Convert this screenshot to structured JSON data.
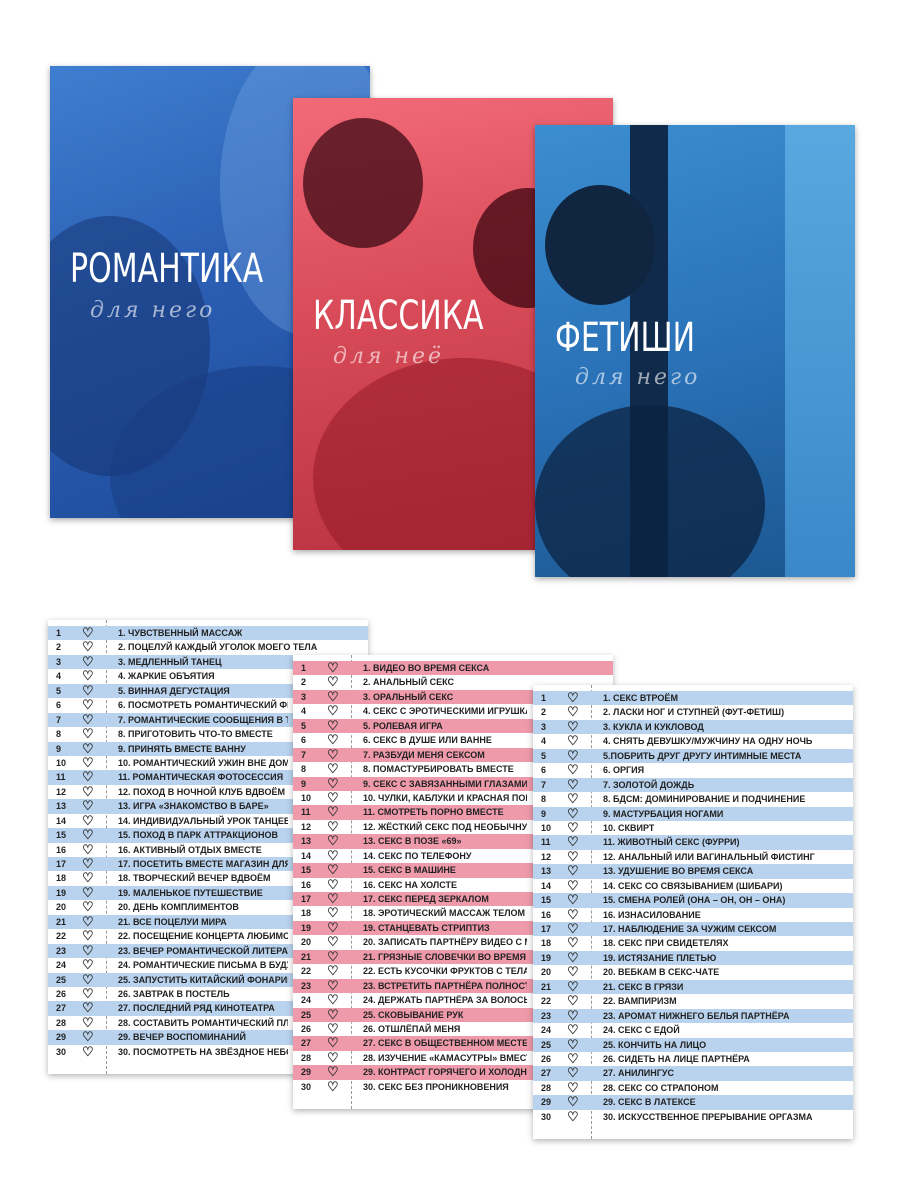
{
  "colors": {
    "romance_card": "#2b5fb4",
    "classic_card": "#d84a58",
    "fetish_card": "#2a72b8",
    "blue_row": "#b9d3ee",
    "pink_row": "#ef9aab"
  },
  "cards": [
    {
      "title": "РОМАНТИКА",
      "subtitle": "для него"
    },
    {
      "title": "КЛАССИКА",
      "subtitle": "для неё"
    },
    {
      "title": "ФЕТИШИ",
      "subtitle": "для него"
    }
  ],
  "row_icon": "heart-outline-icon",
  "lists": {
    "romance": [
      "1. ЧУВСТВЕННЫЙ МАССАЖ",
      "2. ПОЦЕЛУЙ КАЖДЫЙ УГОЛОК МОЕГО ТЕЛА",
      "3. МЕДЛЕННЫЙ ТАНЕЦ",
      "4. ЖАРКИЕ ОБЪЯТИЯ",
      "5. ВИННАЯ ДЕГУСТАЦИЯ",
      "6. ПОСМОТРЕТЬ РОМАНТИЧЕСКИЙ ФИЛЬМ",
      "7. РОМАНТИЧЕСКИЕ СООБЩЕНИЯ В ТЕЧЕНИЕ Д",
      "8. ПРИГОТОВИТЬ ЧТО-ТО ВМЕСТЕ",
      "9. ПРИНЯТЬ ВМЕСТЕ ВАННУ",
      "10. РОМАНТИЧЕСКИЙ УЖИН ВНЕ ДОМА",
      "11. РОМАНТИЧЕСКАЯ ФОТОСЕССИЯ",
      "12. ПОХОД В НОЧНОЙ КЛУБ ВДВОЁМ",
      "13. ИГРА «ЗНАКОМСТВО В БАРЕ»",
      "14. ИНДИВИДУАЛЬНЫЙ УРОК ТАНЦЕВ",
      "15. ПОХОД В ПАРК АТТРАКЦИОНОВ",
      "16. АКТИВНЫЙ ОТДЫХ ВМЕСТЕ",
      "17. ПОСЕТИТЬ ВМЕСТЕ МАГАЗИН ДЛЯ ВЗРОСЛ",
      "18. ТВОРЧЕСКИЙ ВЕЧЕР ВДВОЁМ",
      "19. МАЛЕНЬКОЕ ПУТЕШЕСТВИЕ",
      "20. ДЕНЬ КОМПЛИМЕНТОВ",
      "21. ВСЕ ПОЦЕЛУИ МИРА",
      "22. ПОСЕЩЕНИЕ КОНЦЕРТА ЛЮБИМОГО МУЗЫ",
      "23. ВЕЧЕР РОМАНТИЧЕСКОЙ ЛИТЕРАТУРЫ",
      "24. РОМАНТИЧЕСКИЕ ПИСЬМА В БУДУЩЕЕ",
      "25. ЗАПУСТИТЬ КИТАЙСКИЙ ФОНАРИК",
      "26. ЗАВТРАК В ПОСТЕЛЬ",
      "27. ПОСЛЕДНИЙ РЯД КИНОТЕАТРА",
      "28. СОСТАВИТЬ РОМАНТИЧЕСКИЙ ПЛЕЙЛИСТ",
      "29. ВЕЧЕР ВОСПОМИНАНИЙ",
      "30. ПОСМОТРЕТЬ НА ЗВЁЗДНОЕ НЕБО"
    ],
    "classic": [
      "1. ВИДЕО ВО ВРЕМЯ СЕКСА",
      "2. АНАЛЬНЫЙ СЕКС",
      "3. ОРАЛЬНЫЙ СЕКС",
      "4. СЕКС С ЭРОТИЧЕСКИМИ ИГРУШКАМИ",
      "5. РОЛЕВАЯ ИГРА",
      "6. СЕКС В ДУШЕ ИЛИ ВАННЕ",
      "7. РАЗБУДИ МЕНЯ СЕКСОМ",
      "8. ПОМАСТУРБИРОВАТЬ ВМЕСТЕ",
      "9. СЕКС С ЗАВЯЗАННЫМИ ГЛАЗАМИ",
      "10. ЧУЛКИ, КАБЛУКИ И КРАСНАЯ ПОМАДА",
      "11. СМОТРЕТЬ ПОРНО ВМЕСТЕ",
      "12. ЖЁСТКИЙ СЕКС ПОД НЕОБЫЧНУЮ МУЗЫК",
      "13. СЕКС В ПОЗЕ «69»",
      "14. СЕКС ПО ТЕЛЕФОНУ",
      "15. СЕКС В МАШИНЕ",
      "16. СЕКС НА ХОЛСТЕ",
      "17. СЕКС ПЕРЕД ЗЕРКАЛОМ",
      "18. ЭРОТИЧЕСКИЙ МАССАЖ ТЕЛОМ",
      "19. СТАНЦЕВАТЬ СТРИПТИЗ",
      "20. ЗАПИСАТЬ ПАРТНЁРУ ВИДЕО С МАСТУРБ",
      "21. ГРЯЗНЫЕ СЛОВЕЧКИ ВО ВРЕМЯ СЕКСА",
      "22. ЕСТЬ КУСОЧКИ ФРУКТОВ С ТЕЛА",
      "23. ВСТРЕТИТЬ ПАРТНЁРА ПОЛНОСТЬЮ ГОЛЬ",
      "24. ДЕРЖАТЬ ПАРТНЁРА ЗА ВОЛОСЫ",
      "25. СКОВЫВАНИЕ РУК",
      "26. ОТШЛЁПАЙ МЕНЯ",
      "27. СЕКС В ОБЩЕСТВЕННОМ МЕСТЕ",
      "28. ИЗУЧЕНИЕ «КАМАСУТРЫ» ВМЕСТЕ",
      "29. КОНТРАСТ ГОРЯЧЕГО И ХОЛОДНОГО",
      "30. СЕКС БЕЗ ПРОНИКНОВЕНИЯ"
    ],
    "fetish": [
      "1.  СЕКС ВТРОЁМ",
      "2. ЛАСКИ НОГ И СТУПНЕЙ (ФУТ-ФЕТИШ)",
      "3. КУКЛА И КУКЛОВОД",
      "4. СНЯТЬ ДЕВУШКУ/МУЖЧИНУ НА ОДНУ НОЧЬ",
      "5.ПОБРИТЬ ДРУГ ДРУГУ ИНТИМНЫЕ МЕСТА",
      "6. ОРГИЯ",
      "7. ЗОЛОТОЙ ДОЖДЬ",
      "8. БДСМ: ДОМИНИРОВАНИЕ И ПОДЧИНЕНИЕ",
      "9. МАСТУРБАЦИЯ НОГАМИ",
      "10. СКВИРТ",
      "11. ЖИВОТНЫЙ СЕКС (ФУРРИ)",
      "12. АНАЛЬНЫЙ ИЛИ ВАГИНАЛЬНЫЙ ФИСТИНГ",
      "13. УДУШЕНИЕ ВО ВРЕМЯ СЕКСА",
      "14. СЕКС СО СВЯЗЫВАНИЕМ (ШИБАРИ)",
      "15. СМЕНА РОЛЕЙ (ОНА – ОН, ОН – ОНА)",
      "16. ИЗНАСИЛОВАНИЕ",
      "17. НАБЛЮДЕНИЕ ЗА ЧУЖИМ СЕКСОМ",
      "18. СЕКС ПРИ СВИДЕТЕЛЯХ",
      "19. ИСТЯЗАНИЕ ПЛЕТЬЮ",
      "20. ВЕБКАМ В СЕКС-ЧАТЕ",
      "21. СЕКС В ГРЯЗИ",
      "22. ВАМПИРИЗМ",
      "23. АРОМАТ НИЖНЕГО БЕЛЬЯ ПАРТНЁРА",
      "24. СЕКС С ЕДОЙ",
      "25. КОНЧИТЬ НА ЛИЦО",
      "26. СИДЕТЬ НА ЛИЦЕ ПАРТНЁРА",
      "27. АНИЛИНГУС",
      "28. СЕКС СО СТРАПОНОМ",
      "29. СЕКС В ЛАТЕКСЕ",
      "30. ИСКУССТВЕННОЕ ПРЕРЫВАНИЕ ОРГАЗМА"
    ]
  }
}
